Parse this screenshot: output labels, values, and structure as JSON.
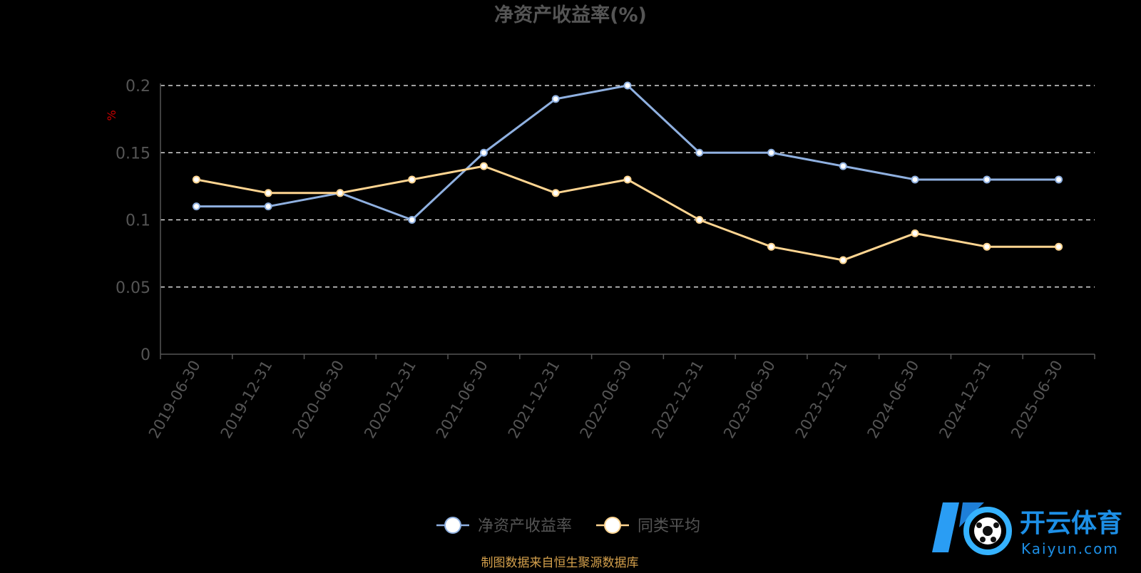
{
  "chart_data": {
    "type": "line",
    "title": "净资产收益率(%)",
    "ylabel": "%",
    "xlabel": "",
    "categories": [
      "2019-06-30",
      "2019-12-31",
      "2020-06-30",
      "2020-12-31",
      "2021-06-30",
      "2021-12-31",
      "2022-06-30",
      "2022-12-31",
      "2023-06-30",
      "2023-12-31",
      "2024-06-30",
      "2024-12-31",
      "2025-06-30"
    ],
    "ylim": [
      0,
      0.2
    ],
    "yticks": [
      "0",
      "0.05",
      "0.1",
      "0.15",
      "0.2"
    ],
    "grid": true,
    "legend_position": "bottom",
    "series": [
      {
        "name": "净资产收益率",
        "color": "#8fb0e0",
        "values": [
          0.11,
          0.11,
          0.12,
          0.1,
          0.15,
          0.19,
          0.2,
          0.15,
          0.15,
          0.14,
          0.13,
          0.13,
          0.13
        ]
      },
      {
        "name": "同类平均",
        "color": "#ffd591",
        "values": [
          0.13,
          0.12,
          0.12,
          0.13,
          0.14,
          0.12,
          0.13,
          0.1,
          0.08,
          0.07,
          0.09,
          0.08,
          0.08
        ]
      }
    ],
    "colors": {
      "axis": "#555555",
      "grid": "#ffffff",
      "tick_text": "#555555",
      "title": "#555555",
      "ylabel": "#cc0000"
    }
  },
  "footer": {
    "source": "制图数据来自恒生聚源数据库",
    "source_color": "#d4a04c"
  },
  "watermark": {
    "brand": "开云体育",
    "site": "Kaiyun.com"
  }
}
